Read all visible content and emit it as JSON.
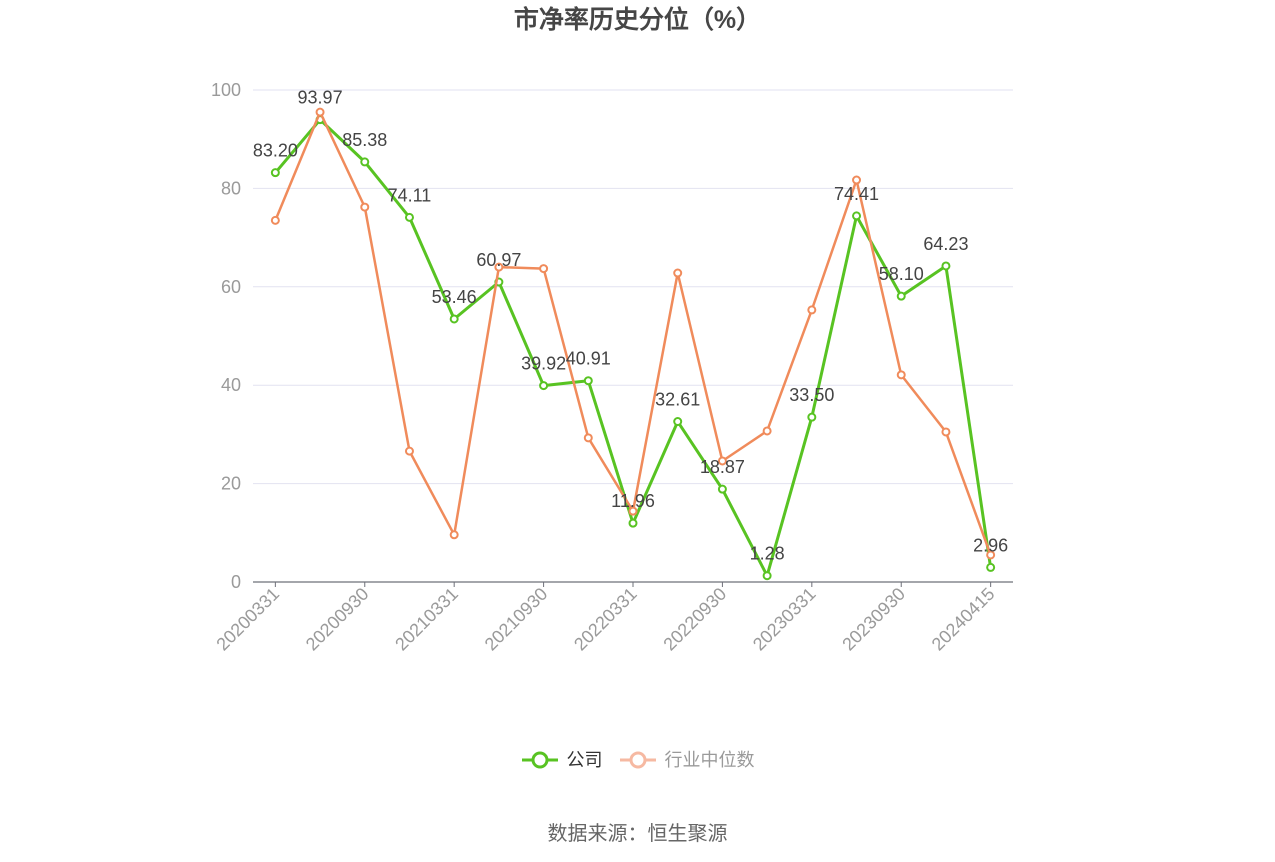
{
  "source": "数据来源：恒生聚源",
  "colors": {
    "company": "#58c322",
    "industry": "#f08b5b",
    "industry_legend": "#f6b9a2",
    "grid": "#e2e2f0",
    "axis": "#6e7079",
    "tick_label": "#9a9a9a",
    "data_label": "#444444"
  },
  "chart_data": {
    "type": "line",
    "title": "市净率历史分位（%）",
    "xlabel": "",
    "ylabel": "",
    "categories": [
      "20200331",
      "",
      "20200930",
      "",
      "20210331",
      "",
      "20210930",
      "",
      "20220331",
      "",
      "20220930",
      "",
      "20230331",
      "",
      "20230930",
      "",
      "20240415"
    ],
    "ylim": [
      0,
      100
    ],
    "yticks": [
      0,
      20,
      40,
      60,
      80,
      100
    ],
    "grid": true,
    "legend": "bottom-center",
    "series": [
      {
        "name": "公司",
        "values": [
          83.2,
          93.97,
          85.38,
          74.11,
          53.46,
          60.97,
          39.92,
          40.91,
          11.96,
          32.61,
          18.87,
          1.28,
          33.5,
          74.41,
          58.1,
          64.23,
          2.96
        ],
        "data_labels": true
      },
      {
        "name": "行业中位数",
        "values": [
          73.5,
          95.5,
          76.2,
          26.6,
          9.6,
          64.0,
          63.7,
          29.3,
          14.4,
          62.8,
          24.6,
          30.7,
          55.3,
          81.7,
          42.1,
          30.5,
          5.5
        ],
        "data_labels": false
      }
    ]
  }
}
